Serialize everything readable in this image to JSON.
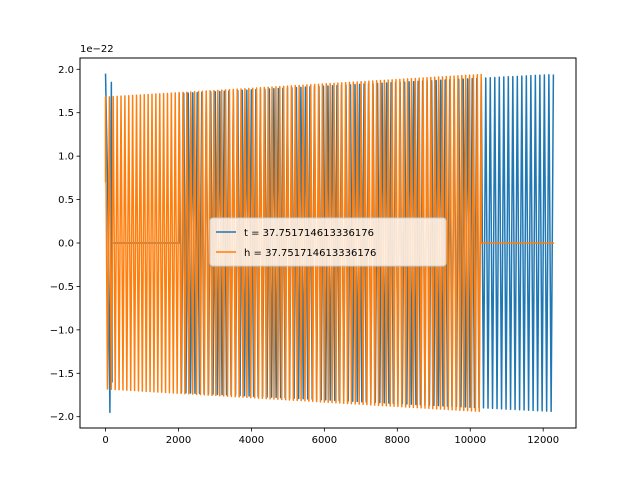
{
  "chart_data": {
    "type": "line",
    "x_ticks": [
      0,
      2000,
      4000,
      6000,
      8000,
      10000,
      12000
    ],
    "y_ticks": [
      -2.0,
      -1.5,
      -1.0,
      -0.5,
      0.0,
      0.5,
      1.0,
      1.5,
      2.0
    ],
    "y_tick_labels": [
      "−2.0",
      "−1.5",
      "−1.0",
      "−0.5",
      "0.0",
      "0.5",
      "1.0",
      "1.5",
      "2.0"
    ],
    "y_offset_label": "1e−22",
    "xlim": [
      -700,
      12900
    ],
    "ylim": [
      -2.13,
      2.13
    ],
    "grid": false,
    "legend_position": "center",
    "series": [
      {
        "name": "t = 37.751714613336176",
        "color": "#1f77b4",
        "segments": [
          {
            "kind": "spike",
            "x": [
              0,
              60,
              120,
              160,
              180
            ],
            "y": [
              1.95,
              0.6,
              -1.95,
              1.85,
              -1.6
            ]
          },
          {
            "kind": "flat",
            "x_start": 180,
            "x_end": 2020,
            "value": 0.0
          },
          {
            "kind": "oscillation",
            "x_start": 2020,
            "x_end": 12280,
            "cycles": 83,
            "amp_start": 1.72,
            "amp_end": 1.94
          }
        ]
      },
      {
        "name": "h = 37.751714613336176",
        "color": "#ff7f0e",
        "segments": [
          {
            "kind": "oscillation",
            "x_start": 0,
            "x_end": 10300,
            "cycles": 97,
            "amp_start": 1.68,
            "amp_end": 1.94,
            "start_value": 0.7
          },
          {
            "kind": "flat",
            "x_start": 10300,
            "x_end": 12300,
            "value": 0.0
          }
        ]
      }
    ]
  }
}
